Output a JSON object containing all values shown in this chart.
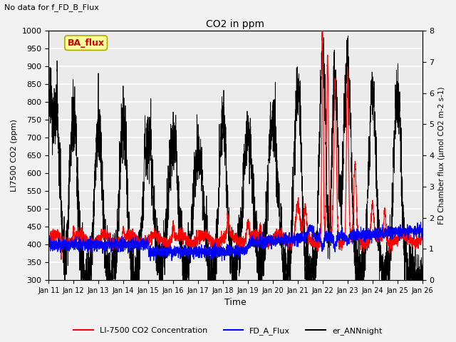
{
  "title": "CO2 in ppm",
  "top_text": "No data for f_FD_B_Flux",
  "ylabel_left": "LI7500 CO2 (ppm)",
  "ylabel_right": "FD Chamber flux (μmol CO2 m-2 s-1)",
  "xlabel": "Time",
  "ylim_left": [
    300,
    1000
  ],
  "ylim_right": [
    0.0,
    8.0
  ],
  "yticks_left": [
    300,
    350,
    400,
    450,
    500,
    550,
    600,
    650,
    700,
    750,
    800,
    850,
    900,
    950,
    1000
  ],
  "yticks_right": [
    0.0,
    1.0,
    2.0,
    3.0,
    4.0,
    5.0,
    6.0,
    7.0,
    8.0
  ],
  "color_red": "#ff0000",
  "color_blue": "#0000ff",
  "color_black": "#000000",
  "legend_box_color": "#ffff99",
  "legend_box_text": "BA_flux",
  "legend_box_text_color": "#cc0000",
  "legend_entries": [
    {
      "label": "LI-7500 CO2 Concentration",
      "color": "#ff0000"
    },
    {
      "label": "FD_A_Flux",
      "color": "#0000ff"
    },
    {
      "label": "er_ANNnight",
      "color": "#000000"
    }
  ],
  "background_color": "#ebebeb",
  "grid_color": "#ffffff",
  "fig_facecolor": "#f2f2f2"
}
